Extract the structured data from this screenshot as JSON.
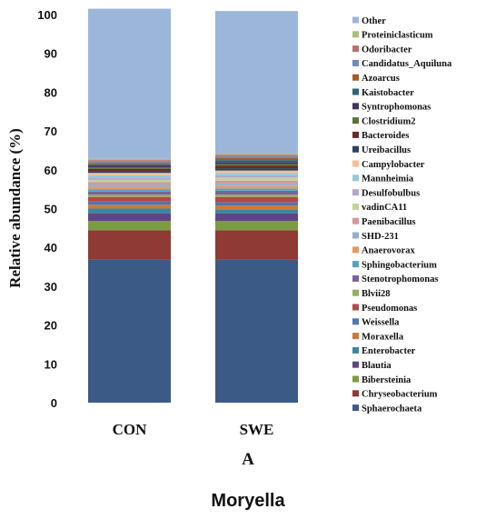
{
  "chart_data": {
    "type": "bar",
    "stacked": true,
    "categories": [
      "CON",
      "SWE"
    ],
    "ylabel": "Relative abundance (%)",
    "ylim": [
      0,
      100
    ],
    "yticks": [
      0,
      10,
      20,
      30,
      40,
      50,
      60,
      70,
      80,
      90,
      100
    ],
    "panel_label": "A",
    "caption": "Moryella",
    "legend_position": "right",
    "series": [
      {
        "name": "Sphaerochaeta",
        "color": "#3c5a86",
        "values": [
          36.8,
          36.8
        ]
      },
      {
        "name": "Chryseobacterium",
        "color": "#8f3a34",
        "values": [
          7.6,
          7.6
        ]
      },
      {
        "name": "Bibersteinia",
        "color": "#7d9a44",
        "values": [
          2.4,
          2.4
        ]
      },
      {
        "name": "Blautia",
        "color": "#5e4682",
        "values": [
          2.0,
          2.0
        ]
      },
      {
        "name": "Enterobacter",
        "color": "#3a88a0",
        "values": [
          1.2,
          1.0
        ]
      },
      {
        "name": "Moraxella",
        "color": "#cc7a3a",
        "values": [
          1.0,
          1.0
        ]
      },
      {
        "name": "Weissella",
        "color": "#4f76ad",
        "values": [
          0.8,
          0.8
        ]
      },
      {
        "name": "Pseudomonas",
        "color": "#b04a48",
        "values": [
          1.2,
          1.4
        ]
      },
      {
        "name": "Blvii28",
        "color": "#94b060",
        "values": [
          0.6,
          0.6
        ]
      },
      {
        "name": "Stenotrophomonas",
        "color": "#7a62a0",
        "values": [
          0.8,
          1.0
        ]
      },
      {
        "name": "Sphingobacterium",
        "color": "#52a5bf",
        "values": [
          0.6,
          0.6
        ]
      },
      {
        "name": "Anaerovorax",
        "color": "#e89a5a",
        "values": [
          0.6,
          0.6
        ]
      },
      {
        "name": "SHD-231",
        "color": "#95aed2",
        "values": [
          0.6,
          0.6
        ]
      },
      {
        "name": "Paenibacillus",
        "color": "#d59896",
        "values": [
          0.6,
          0.8
        ]
      },
      {
        "name": "vadinCA11",
        "color": "#c0d49a",
        "values": [
          0.6,
          0.8
        ]
      },
      {
        "name": "Desulfobulbus",
        "color": "#b5a6cd",
        "values": [
          0.6,
          0.6
        ]
      },
      {
        "name": "Mannheimia",
        "color": "#94cad9",
        "values": [
          0.6,
          0.6
        ]
      },
      {
        "name": "Campylobacter",
        "color": "#f6be92",
        "values": [
          0.6,
          0.6
        ]
      },
      {
        "name": "Ureibacillus",
        "color": "#2b4263",
        "values": [
          0.5,
          0.6
        ]
      },
      {
        "name": "Bacteroides",
        "color": "#6b2a27",
        "values": [
          0.5,
          0.6
        ]
      },
      {
        "name": "Clostridium2",
        "color": "#5c7331",
        "values": [
          0.4,
          0.5
        ]
      },
      {
        "name": "Syntrophomonas",
        "color": "#453361",
        "values": [
          0.4,
          0.5
        ]
      },
      {
        "name": "Kaistobacter",
        "color": "#2a6678",
        "values": [
          0.4,
          0.5
        ]
      },
      {
        "name": "Azoarcus",
        "color": "#a45c24",
        "values": [
          0.4,
          0.5
        ]
      },
      {
        "name": "Candidatus_Aquiluna",
        "color": "#6f8bba",
        "values": [
          0.4,
          0.5
        ]
      },
      {
        "name": "Odoribacter",
        "color": "#c06e6c",
        "values": [
          0.3,
          0.4
        ]
      },
      {
        "name": "Proteiniclasticum",
        "color": "#a6c17a",
        "values": [
          0.3,
          0.4
        ]
      },
      {
        "name": "Other",
        "color": "#9cb6d9",
        "values": [
          38.7,
          36.6
        ]
      }
    ]
  }
}
